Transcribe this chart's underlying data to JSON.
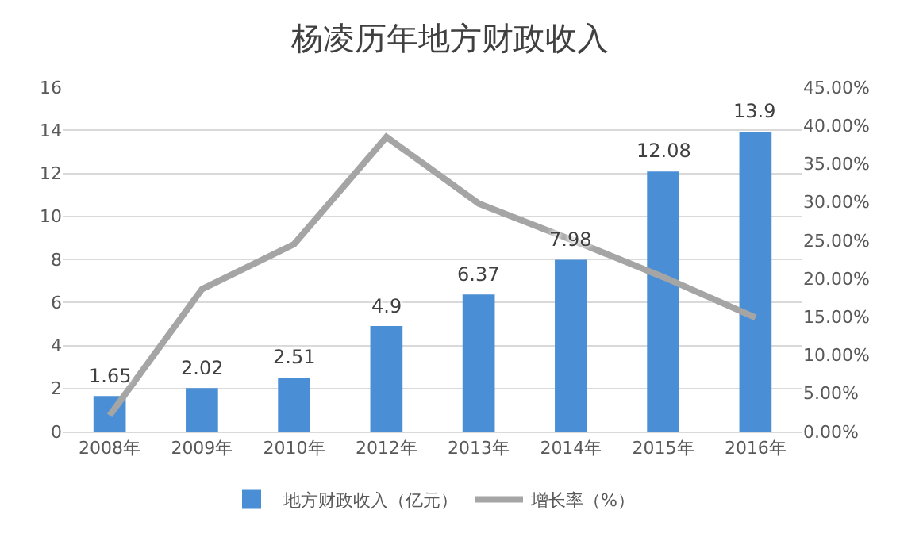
{
  "chart_data": {
    "type": "bar",
    "title": "杨凌历年地方财政收入",
    "categories": [
      "2008年",
      "2009年",
      "2010年",
      "2012年",
      "2013年",
      "2014年",
      "2015年",
      "2016年"
    ],
    "series": [
      {
        "name": "地方财政收入（亿元）",
        "color": "#4a8fd6",
        "values": [
          1.65,
          2.02,
          2.51,
          4.9,
          6.37,
          7.98,
          12.08,
          13.9
        ],
        "data_labels": true
      },
      {
        "name": "增长率（%）",
        "type": "line",
        "axis": "y2",
        "color": "#a5a5a5",
        "values": [
          2.1,
          18.6,
          24.5,
          38.5,
          29.8,
          25.1,
          20.2,
          14.9
        ]
      }
    ],
    "ylim": [
      0,
      16
    ],
    "yticks": [
      0,
      2,
      4,
      6,
      8,
      10,
      12,
      14,
      16
    ],
    "y2lim": [
      0,
      45
    ],
    "y2ticks": [
      {
        "value": 0,
        "label": "0.00%"
      },
      {
        "value": 5,
        "label": "5.00%"
      },
      {
        "value": 10,
        "label": "10.00%"
      },
      {
        "value": 15,
        "label": "15.00%"
      },
      {
        "value": 20,
        "label": "20.00%"
      },
      {
        "value": 25,
        "label": "25.00%"
      },
      {
        "value": 30,
        "label": "30.00%"
      },
      {
        "value": 35,
        "label": "35.00%"
      },
      {
        "value": 40,
        "label": "40.00%"
      },
      {
        "value": 45,
        "label": "45.00%"
      }
    ],
    "grid": "y",
    "legend": "bottom",
    "marker": "none"
  }
}
